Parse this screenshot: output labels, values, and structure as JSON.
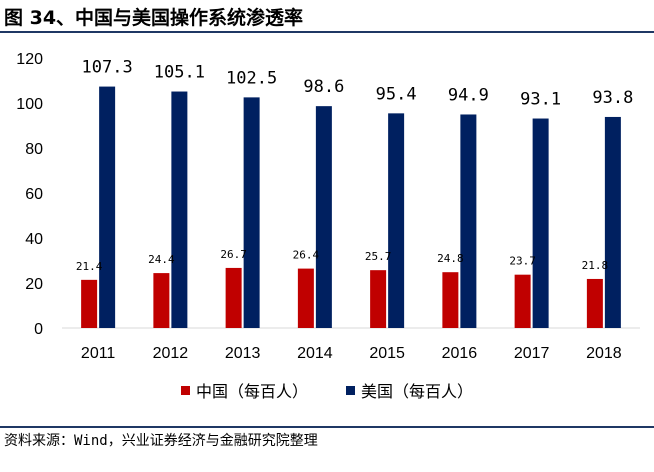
{
  "title": "图 34、中国与美国操作系统渗透率",
  "source": "资料来源：Wind，兴业证券经济与金融研究院整理",
  "chart_data": {
    "type": "bar",
    "categories": [
      "2011",
      "2012",
      "2013",
      "2014",
      "2015",
      "2016",
      "2017",
      "2018"
    ],
    "series": [
      {
        "name": "中国（每百人）",
        "color": "#c00000",
        "values": [
          21.4,
          24.4,
          26.7,
          26.4,
          25.7,
          24.8,
          23.7,
          21.8
        ],
        "labels": [
          "21.4",
          "24.4",
          "26.7",
          "26.4",
          "25.7",
          "24.8",
          "23.7",
          "21.8"
        ]
      },
      {
        "name": "美国（每百人）",
        "color": "#002060",
        "values": [
          107.3,
          105.1,
          102.5,
          98.6,
          95.4,
          94.9,
          93.1,
          93.8
        ],
        "labels": [
          "107.3",
          "105.1",
          "102.5",
          "98.6",
          "95.4",
          "94.9",
          "93.1",
          "93.8"
        ]
      }
    ],
    "ylim": [
      0,
      120
    ],
    "yticks": [
      "0",
      "20",
      "40",
      "60",
      "80",
      "100",
      "120"
    ],
    "legend_position": "bottom",
    "grid": false
  }
}
